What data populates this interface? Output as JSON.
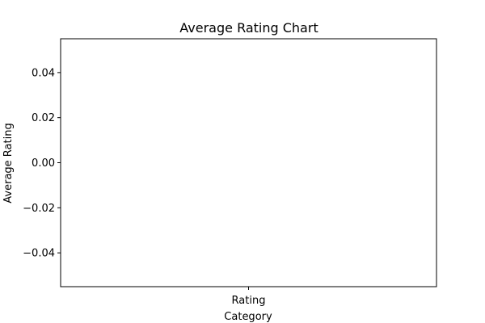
{
  "chart_data": {
    "type": "bar",
    "title": "Average Rating Chart",
    "xlabel": "Category",
    "ylabel": "Average Rating",
    "categories": [
      "Rating"
    ],
    "values": [
      0
    ],
    "ylim": [
      -0.055,
      0.055
    ],
    "yticks": [
      {
        "value": 0.04,
        "label": "0.04"
      },
      {
        "value": 0.02,
        "label": "0.02"
      },
      {
        "value": 0.0,
        "label": "0.00"
      },
      {
        "value": -0.02,
        "label": "−0.02"
      },
      {
        "value": -0.04,
        "label": "−0.04"
      }
    ],
    "grid": false,
    "legend": "none"
  }
}
